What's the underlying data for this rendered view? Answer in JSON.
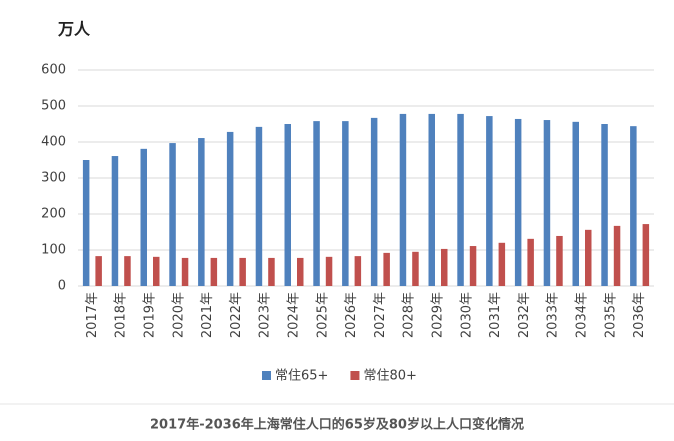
{
  "chart_data": {
    "type": "bar",
    "y_label": "万人",
    "caption": "2017年-2036年上海常住人口的65岁及80岁以上人口变化情况",
    "categories": [
      "2017年",
      "2018年",
      "2019年",
      "2020年",
      "2021年",
      "2022年",
      "2023年",
      "2024年",
      "2025年",
      "2026年",
      "2027年",
      "2028年",
      "2029年",
      "2030年",
      "2031年",
      "2032年",
      "2033年",
      "2034年",
      "2035年",
      "2036年"
    ],
    "series": [
      {
        "name": "常住65+",
        "color": "#4f81bd",
        "values": [
          350,
          361,
          381,
          397,
          411,
          428,
          442,
          450,
          458,
          458,
          467,
          478,
          478,
          478,
          472,
          464,
          461,
          456,
          450,
          444
        ]
      },
      {
        "name": "常住80+",
        "color": "#c0504d",
        "values": [
          83,
          83,
          81,
          78,
          78,
          78,
          78,
          78,
          81,
          83,
          92,
          95,
          103,
          111,
          120,
          131,
          139,
          156,
          167,
          172
        ]
      }
    ],
    "ylim": [
      0,
      600
    ],
    "yticks": [
      0,
      100,
      200,
      300,
      400,
      500,
      600
    ],
    "grid": true
  }
}
